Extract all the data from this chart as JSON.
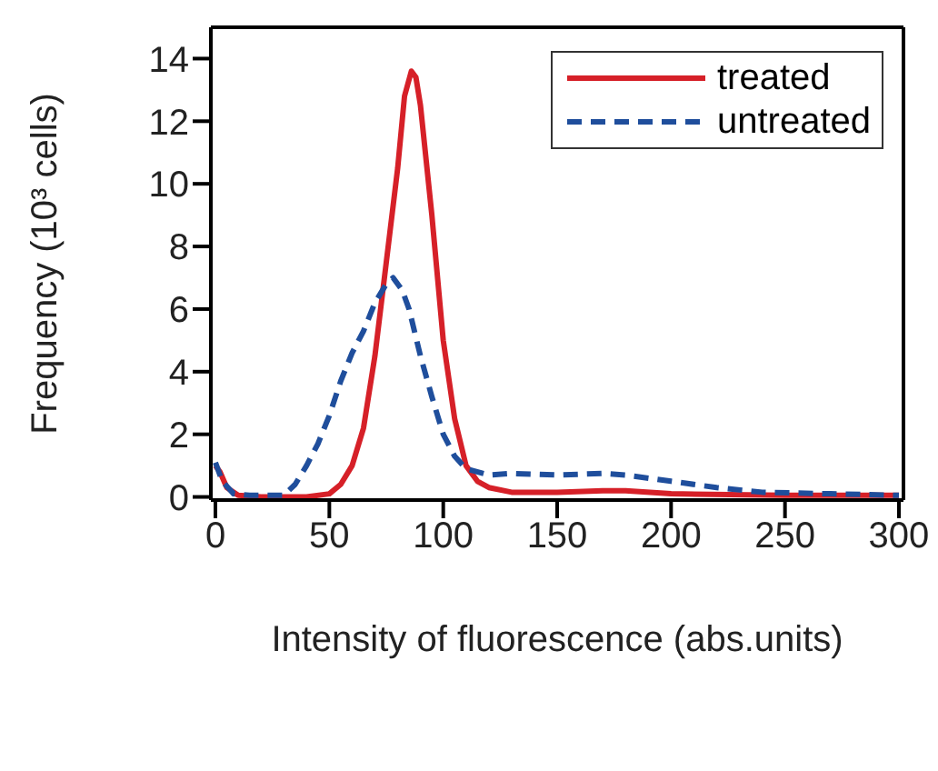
{
  "chart_data": {
    "type": "line",
    "xlabel": "Intensity of fluorescence (abs.units)",
    "ylabel": "Frequency (10³ cells)",
    "xlim": [
      -2,
      302
    ],
    "ylim": [
      -0.1,
      15
    ],
    "xticks": [
      0,
      50,
      100,
      150,
      200,
      250,
      300
    ],
    "yticks": [
      0,
      2,
      4,
      6,
      8,
      10,
      12,
      14
    ],
    "legend": "top right",
    "marker": "none",
    "series": [
      {
        "name": "treated",
        "color": "#d62028",
        "line_style": "solid",
        "x": [
          0,
          2,
          5,
          10,
          20,
          40,
          50,
          55,
          60,
          65,
          70,
          75,
          80,
          83,
          86,
          88,
          90,
          95,
          100,
          105,
          110,
          115,
          120,
          130,
          150,
          170,
          180,
          200,
          250,
          300
        ],
        "values": [
          1.0,
          0.8,
          0.3,
          0.05,
          0,
          0,
          0.1,
          0.4,
          1,
          2.2,
          4.5,
          7.5,
          10.5,
          12.8,
          13.6,
          13.4,
          12.5,
          9,
          5,
          2.5,
          1,
          0.5,
          0.3,
          0.15,
          0.15,
          0.2,
          0.2,
          0.1,
          0.05,
          0.05
        ]
      },
      {
        "name": "untreated",
        "color": "#1f4e9c",
        "line_style": "dashed",
        "x": [
          0,
          3,
          8,
          15,
          30,
          35,
          40,
          45,
          50,
          55,
          60,
          65,
          70,
          75,
          78,
          82,
          85,
          90,
          95,
          100,
          105,
          110,
          120,
          130,
          150,
          170,
          180,
          200,
          220,
          240,
          270,
          300
        ],
        "values": [
          1.1,
          0.5,
          0.1,
          0.05,
          0.05,
          0.4,
          1,
          1.7,
          2.6,
          3.7,
          4.6,
          5.3,
          6.2,
          6.8,
          7.0,
          6.6,
          6.0,
          4.5,
          3.2,
          2.0,
          1.3,
          0.9,
          0.7,
          0.75,
          0.7,
          0.75,
          0.7,
          0.5,
          0.3,
          0.15,
          0.1,
          0.05
        ]
      }
    ]
  }
}
